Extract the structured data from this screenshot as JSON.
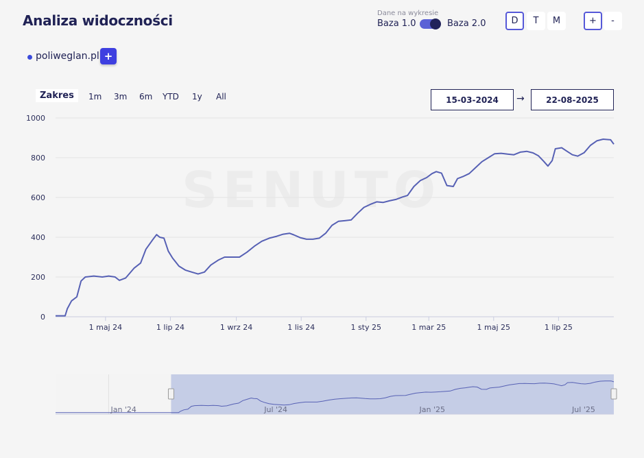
{
  "header": {
    "title": "Analiza widoczności",
    "base_caption": "Dane na wykresie",
    "base1_label": "Baza 1.0",
    "base2_label": "Baza 2.0",
    "toggle_state": "Baza 2.0"
  },
  "granularity": {
    "options": [
      "D",
      "T",
      "M"
    ],
    "selected": "D"
  },
  "zoom": {
    "plus": "+",
    "minus": "-"
  },
  "domains": [
    {
      "name": "poliweglan.pl",
      "color": "#3b4bdb"
    }
  ],
  "add_domain_label": "+",
  "range": {
    "label": "Zakres",
    "buttons": [
      "1m",
      "3m",
      "6m",
      "YTD",
      "1y",
      "All"
    ],
    "from": "15-03-2024",
    "arrow": "→",
    "to": "22-08-2025"
  },
  "watermark": "SENUTO",
  "chart_data": {
    "type": "line",
    "series": [
      {
        "name": "poliweglan.pl",
        "color": "#5660b4"
      }
    ],
    "x_start": "2024-03-15",
    "x_end": "2025-08-22",
    "ylim": [
      0,
      1000
    ],
    "y_ticks": [
      0,
      200,
      400,
      600,
      800,
      1000
    ],
    "x_tick_labels": [
      "1 maj 24",
      "1 lip 24",
      "1 wrz 24",
      "1 lis 24",
      "1 sty 25",
      "1 mar 25",
      "1 maj 25",
      "1 lip 25"
    ],
    "x_tick_dates": [
      "2024-05-01",
      "2024-07-01",
      "2024-09-01",
      "2024-11-01",
      "2025-01-01",
      "2025-03-01",
      "2025-05-01",
      "2025-07-01"
    ],
    "points": [
      [
        "2024-03-15",
        5
      ],
      [
        "2024-03-24",
        5
      ],
      [
        "2024-03-26",
        40
      ],
      [
        "2024-03-30",
        80
      ],
      [
        "2024-04-04",
        100
      ],
      [
        "2024-04-08",
        180
      ],
      [
        "2024-04-12",
        200
      ],
      [
        "2024-04-20",
        205
      ],
      [
        "2024-04-28",
        200
      ],
      [
        "2024-05-04",
        205
      ],
      [
        "2024-05-10",
        200
      ],
      [
        "2024-05-14",
        183
      ],
      [
        "2024-05-20",
        195
      ],
      [
        "2024-05-28",
        245
      ],
      [
        "2024-06-03",
        270
      ],
      [
        "2024-06-08",
        340
      ],
      [
        "2024-06-14",
        385
      ],
      [
        "2024-06-18",
        413
      ],
      [
        "2024-06-21",
        400
      ],
      [
        "2024-06-25",
        395
      ],
      [
        "2024-06-29",
        330
      ],
      [
        "2024-07-03",
        295
      ],
      [
        "2024-07-09",
        255
      ],
      [
        "2024-07-15",
        235
      ],
      [
        "2024-07-21",
        225
      ],
      [
        "2024-07-27",
        215
      ],
      [
        "2024-08-02",
        225
      ],
      [
        "2024-08-08",
        260
      ],
      [
        "2024-08-15",
        285
      ],
      [
        "2024-08-21",
        300
      ],
      [
        "2024-08-28",
        300
      ],
      [
        "2024-09-04",
        300
      ],
      [
        "2024-09-11",
        325
      ],
      [
        "2024-09-18",
        355
      ],
      [
        "2024-09-25",
        380
      ],
      [
        "2024-10-02",
        395
      ],
      [
        "2024-10-09",
        405
      ],
      [
        "2024-10-15",
        415
      ],
      [
        "2024-10-21",
        420
      ],
      [
        "2024-10-25",
        412
      ],
      [
        "2024-10-31",
        398
      ],
      [
        "2024-11-06",
        390
      ],
      [
        "2024-11-12",
        390
      ],
      [
        "2024-11-18",
        395
      ],
      [
        "2024-11-24",
        420
      ],
      [
        "2024-11-30",
        460
      ],
      [
        "2024-12-06",
        480
      ],
      [
        "2024-12-12",
        483
      ],
      [
        "2024-12-18",
        487
      ],
      [
        "2024-12-24",
        520
      ],
      [
        "2024-12-30",
        550
      ],
      [
        "2025-01-05",
        565
      ],
      [
        "2025-01-11",
        578
      ],
      [
        "2025-01-17",
        575
      ],
      [
        "2025-01-23",
        583
      ],
      [
        "2025-01-29",
        590
      ],
      [
        "2025-02-04",
        602
      ],
      [
        "2025-02-09",
        610
      ],
      [
        "2025-02-15",
        655
      ],
      [
        "2025-02-21",
        685
      ],
      [
        "2025-02-27",
        700
      ],
      [
        "2025-03-04",
        720
      ],
      [
        "2025-03-08",
        730
      ],
      [
        "2025-03-13",
        722
      ],
      [
        "2025-03-18",
        660
      ],
      [
        "2025-03-24",
        655
      ],
      [
        "2025-03-28",
        695
      ],
      [
        "2025-04-02",
        705
      ],
      [
        "2025-04-08",
        720
      ],
      [
        "2025-04-14",
        750
      ],
      [
        "2025-04-20",
        780
      ],
      [
        "2025-04-26",
        800
      ],
      [
        "2025-05-02",
        820
      ],
      [
        "2025-05-08",
        822
      ],
      [
        "2025-05-14",
        818
      ],
      [
        "2025-05-20",
        815
      ],
      [
        "2025-05-26",
        828
      ],
      [
        "2025-06-01",
        832
      ],
      [
        "2025-06-07",
        824
      ],
      [
        "2025-06-12",
        810
      ],
      [
        "2025-06-17",
        782
      ],
      [
        "2025-06-21",
        758
      ],
      [
        "2025-06-25",
        785
      ],
      [
        "2025-06-28",
        845
      ],
      [
        "2025-07-04",
        850
      ],
      [
        "2025-07-09",
        832
      ],
      [
        "2025-07-14",
        815
      ],
      [
        "2025-07-19",
        808
      ],
      [
        "2025-07-25",
        825
      ],
      [
        "2025-07-31",
        862
      ],
      [
        "2025-08-06",
        885
      ],
      [
        "2025-08-12",
        893
      ],
      [
        "2025-08-19",
        890
      ],
      [
        "2025-08-22",
        868
      ]
    ]
  },
  "navigator": {
    "x_start": "2023-10-30",
    "x_end": "2025-08-22",
    "selected_from": "2024-03-15",
    "selected_to": "2025-08-22",
    "tick_labels": [
      "Jan '24",
      "Jul '24",
      "Jan '25",
      "Jul '25"
    ],
    "tick_dates": [
      "2024-01-01",
      "2024-07-01",
      "2025-01-01",
      "2025-07-01"
    ]
  }
}
